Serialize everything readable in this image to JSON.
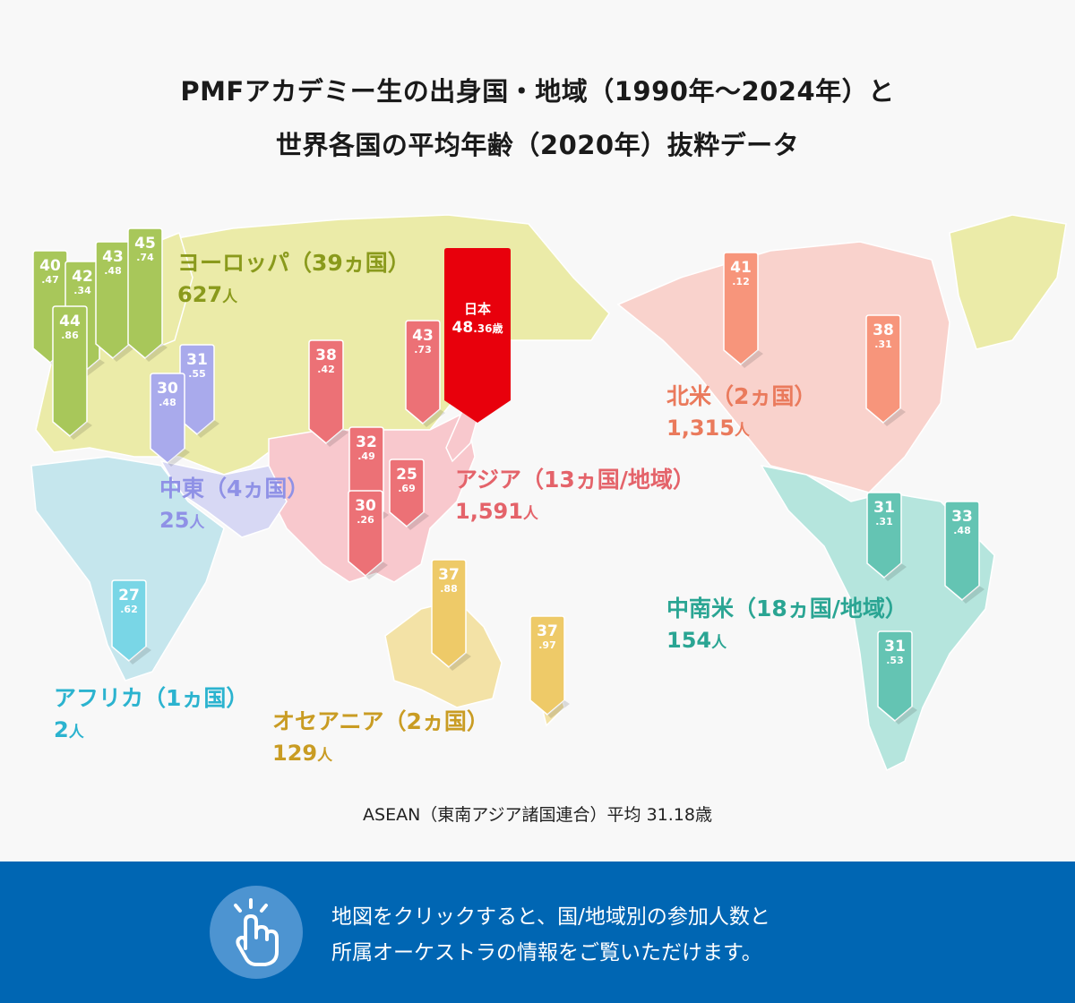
{
  "title": {
    "line1": "PMFアカデミー生の出身国・地域（1990年〜2024年）と",
    "line2": "世界各国の平均年齢（2020年）抜粋データ"
  },
  "colors": {
    "europe": "#9db53a",
    "europe_pin": "#a8c75a",
    "europe_label": "#8a9a1c",
    "europe_land": "#ebeba8",
    "middle_east_pin": "#a9aaec",
    "middle_east_label": "#8f91e6",
    "asia_pin": "#ec7176",
    "asia_label": "#e4636a",
    "asia_land": "#f8c8cd",
    "japan": "#e8000c",
    "north_america_pin": "#f7957b",
    "north_america_label": "#ea7a5c",
    "north_america_land": "#f9d2cc",
    "latin_america_pin": "#64c4b3",
    "latin_america_label": "#2aa593",
    "latin_america_land": "#b5e5dd",
    "africa_pin": "#79d6e6",
    "africa_label": "#2bb3cf",
    "africa_land": "#c5e6ed",
    "oceania_pin": "#eeca68",
    "oceania_label": "#c99c23",
    "oceania_land": "#f3e2a6",
    "footer": "#0066b3"
  },
  "regions": {
    "europe": {
      "name": "ヨーロッパ（39ヵ国）",
      "count": "627",
      "unit": "人"
    },
    "middle_east": {
      "name": "中東（4ヵ国）",
      "count": "25",
      "unit": "人"
    },
    "asia": {
      "name": "アジア（13ヵ国/地域）",
      "count": "1,591",
      "unit": "人"
    },
    "north_america": {
      "name": "北米（2ヵ国）",
      "count": "1,315",
      "unit": "人"
    },
    "latin_america": {
      "name": "中南米（18ヵ国/地域）",
      "count": "154",
      "unit": "人"
    },
    "africa": {
      "name": "アフリカ（1ヵ国）",
      "count": "2",
      "unit": "人"
    },
    "oceania": {
      "name": "オセアニア（2ヵ国）",
      "count": "129",
      "unit": "人"
    }
  },
  "pins": {
    "eu1": {
      "big": "40",
      "small": ".47"
    },
    "eu2": {
      "big": "42",
      "small": ".34"
    },
    "eu3": {
      "big": "43",
      "small": ".48"
    },
    "eu4": {
      "big": "45",
      "small": ".74"
    },
    "eu5": {
      "big": "44",
      "small": ".86"
    },
    "me1": {
      "big": "31",
      "small": ".55"
    },
    "me2": {
      "big": "30",
      "small": ".48"
    },
    "as1": {
      "big": "38",
      "small": ".42"
    },
    "as2": {
      "big": "43",
      "small": ".73"
    },
    "as3": {
      "big": "32",
      "small": ".49"
    },
    "as4": {
      "big": "25",
      "small": ".69"
    },
    "as5": {
      "big": "30",
      "small": ".26"
    },
    "na1": {
      "big": "41",
      "small": ".12"
    },
    "na2": {
      "big": "38",
      "small": ".31"
    },
    "la1": {
      "big": "31",
      "small": ".31"
    },
    "la2": {
      "big": "33",
      "small": ".48"
    },
    "la3": {
      "big": "31",
      "small": ".53"
    },
    "af1": {
      "big": "27",
      "small": ".62"
    },
    "oc1": {
      "big": "37",
      "small": ".88"
    },
    "oc2": {
      "big": "37",
      "small": ".97"
    }
  },
  "japan": {
    "name": "日本",
    "value_int": "48",
    "value_dec": ".36歳"
  },
  "asean_note": "ASEAN（東南アジア諸国連合）平均 31.18歳",
  "footer": {
    "icon": "pointing-hand-icon",
    "line1": "地図をクリックすると、国/地域別の参加人数と",
    "line2": "所属オーケストラの情報をご覧いただけます。"
  }
}
